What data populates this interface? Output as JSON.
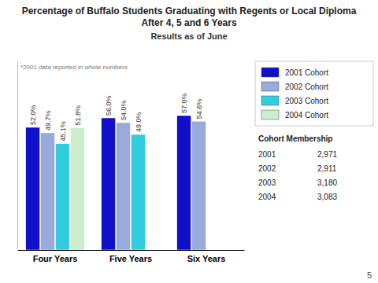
{
  "chart_data": {
    "type": "bar",
    "title": "Percentage of Buffalo Students Graduating with Regents or Local Diploma After 4, 5 and 6 Years",
    "subtitle": "Results as of June",
    "categories": [
      "Four Years",
      "Five Years",
      "Six Years"
    ],
    "series": [
      {
        "name": "2001 Cohort",
        "color": "#1010CC",
        "values": [
          52.0,
          56.0,
          57.0
        ],
        "value_labels": [
          "52.0%",
          "56.0%",
          "57.0%"
        ]
      },
      {
        "name": "2002 Cohort",
        "color": "#99AADD",
        "values": [
          49.7,
          54.0,
          54.6
        ],
        "value_labels": [
          "49.7%",
          "54.0%",
          "54.6%"
        ]
      },
      {
        "name": "2003 Cohort",
        "color": "#33CCDD",
        "values": [
          45.1,
          49.0,
          null
        ],
        "value_labels": [
          "45.1%",
          "49.0%",
          null
        ]
      },
      {
        "name": "2004 Cohort",
        "color": "#CCEECC",
        "values": [
          51.8,
          null,
          null
        ],
        "value_labels": [
          "51.8%",
          null,
          null
        ]
      }
    ],
    "ylim": [
      0,
      80
    ],
    "tick_labels": "x",
    "grid": false,
    "legend": "right",
    "data_labels": true,
    "annotations": [
      "*2001 data reported in whole numbers",
      "Cohort Membership",
      "2001",
      "2,971",
      "2002",
      "2,911",
      "2003",
      "3,180",
      "2004",
      "3,083",
      "5"
    ]
  }
}
